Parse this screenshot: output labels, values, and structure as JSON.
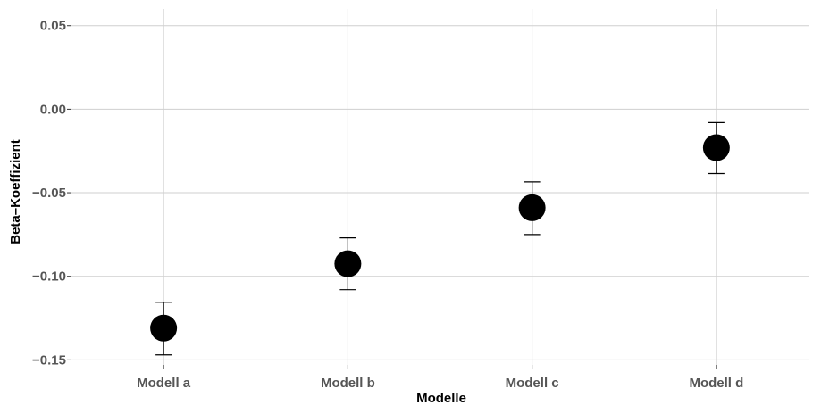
{
  "chart_data": {
    "type": "scatter",
    "title": "",
    "xlabel": "Modelle",
    "ylabel": "Beta–Koeffizient",
    "categories": [
      "Modell a",
      "Modell b",
      "Modell c",
      "Modell d"
    ],
    "values": [
      -0.131,
      -0.0925,
      -0.059,
      -0.023
    ],
    "error_low": [
      -0.147,
      -0.108,
      -0.075,
      -0.0385
    ],
    "error_high": [
      -0.1155,
      -0.077,
      -0.0435,
      -0.008
    ],
    "ylim": [
      -0.153,
      0.06
    ],
    "yticks": [
      -0.15,
      -0.1,
      -0.05,
      0.0,
      0.05
    ],
    "ytick_labels": [
      "−0.15",
      "−0.10",
      "−0.05",
      "0.00",
      "0.05"
    ],
    "grid": true,
    "legend": "none",
    "colors": {
      "point": "#000000",
      "grid": "#cfcfcf",
      "tick_label": "#555555",
      "axis_title": "#000000"
    }
  }
}
